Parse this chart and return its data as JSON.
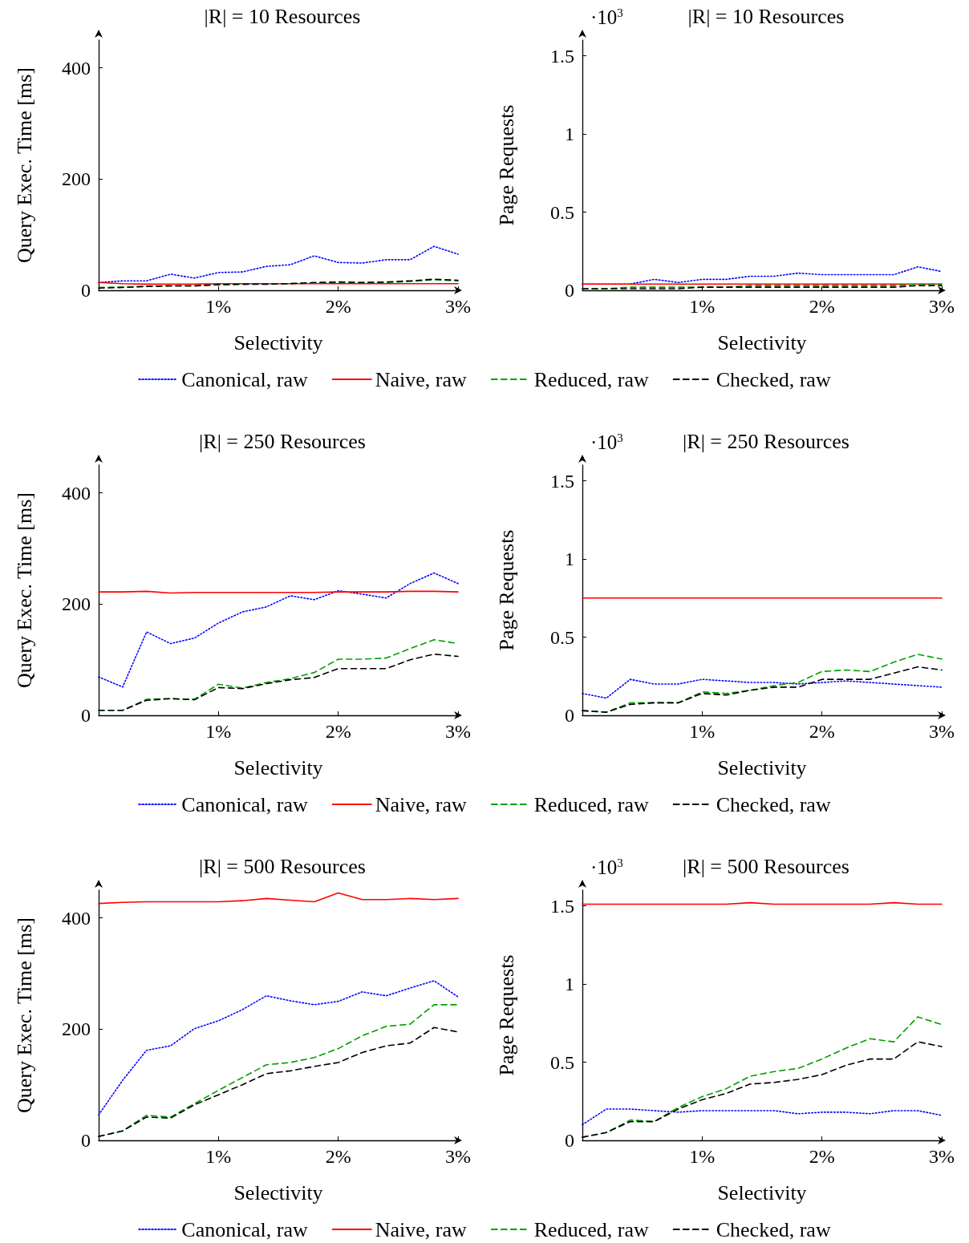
{
  "chart_data": [
    {
      "type": "line",
      "title": "|R| = 10 Resources",
      "xlabel": "Selectivity",
      "ylabel": "Query Exec. Time [ms]",
      "x": [
        0,
        0.2,
        0.4,
        0.6,
        0.8,
        1,
        1.2,
        1.4,
        1.6,
        1.8,
        2,
        2.2,
        2.4,
        2.6,
        2.8,
        3
      ],
      "xlim": [
        0,
        3
      ],
      "xticks": [
        {
          "value": 1,
          "label": "1%"
        },
        {
          "value": 2,
          "label": "2%"
        },
        {
          "value": 3,
          "label": "3%"
        }
      ],
      "ylim": [
        0,
        450
      ],
      "yticks": [
        0,
        200,
        400
      ],
      "grid": false,
      "marker": "none",
      "legend": "bottom",
      "series": [
        {
          "name": "Canonical, raw",
          "color": "#0000ff",
          "line_style": "dotted",
          "values": [
            14,
            17,
            17,
            29,
            22,
            32,
            33,
            43,
            46,
            62,
            50,
            49,
            55,
            55,
            79,
            65
          ]
        },
        {
          "name": "Naive, raw",
          "color": "#ff0000",
          "line_style": "solid",
          "values": [
            14,
            12,
            11,
            11,
            11,
            12,
            12,
            12,
            12,
            12,
            12,
            12,
            12,
            12,
            12,
            12
          ]
        },
        {
          "name": "Reduced, raw",
          "color": "#00a000",
          "line_style": "dashed",
          "values": [
            5,
            6,
            7,
            8,
            8,
            10,
            11,
            12,
            12,
            13,
            14,
            14,
            14,
            16,
            19,
            17
          ]
        },
        {
          "name": "Checked, raw",
          "color": "#000000",
          "line_style": "dashed",
          "values": [
            4,
            5,
            7,
            8,
            8,
            10,
            11,
            11,
            12,
            14,
            15,
            14,
            15,
            17,
            20,
            18
          ]
        }
      ]
    },
    {
      "type": "line",
      "title": "|R| = 10 Resources",
      "xlabel": "Selectivity",
      "ylabel": "Page Requests",
      "annotations": [
        "·10$^{3}$"
      ],
      "x": [
        0,
        0.2,
        0.4,
        0.6,
        0.8,
        1,
        1.2,
        1.4,
        1.6,
        1.8,
        2,
        2.2,
        2.4,
        2.6,
        2.8,
        3
      ],
      "xlim": [
        0,
        3
      ],
      "xticks": [
        {
          "value": 1,
          "label": "1%"
        },
        {
          "value": 2,
          "label": "2%"
        },
        {
          "value": 3,
          "label": "3%"
        }
      ],
      "ylim": [
        0,
        1.6
      ],
      "yticks": [
        0,
        0.5,
        1,
        1.5
      ],
      "grid": false,
      "marker": "none",
      "series": [
        {
          "color": "#0000ff",
          "line_style": "dotted",
          "values": [
            0.04,
            0.04,
            0.04,
            0.07,
            0.05,
            0.07,
            0.07,
            0.09,
            0.09,
            0.11,
            0.1,
            0.1,
            0.1,
            0.1,
            0.15,
            0.12
          ]
        },
        {
          "color": "#ff0000",
          "line_style": "solid",
          "values": [
            0.04,
            0.04,
            0.04,
            0.04,
            0.04,
            0.04,
            0.04,
            0.04,
            0.04,
            0.04,
            0.04,
            0.04,
            0.04,
            0.04,
            0.04,
            0.04
          ]
        },
        {
          "color": "#00a000",
          "line_style": "dashed",
          "values": [
            0.01,
            0.01,
            0.02,
            0.02,
            0.02,
            0.02,
            0.02,
            0.03,
            0.03,
            0.03,
            0.03,
            0.03,
            0.03,
            0.03,
            0.04,
            0.04
          ]
        },
        {
          "color": "#000000",
          "line_style": "dashed",
          "values": [
            0.01,
            0.01,
            0.01,
            0.01,
            0.01,
            0.02,
            0.02,
            0.02,
            0.02,
            0.02,
            0.02,
            0.02,
            0.02,
            0.02,
            0.03,
            0.03
          ]
        }
      ]
    },
    {
      "type": "line",
      "title": "|R| = 250 Resources",
      "xlabel": "Selectivity",
      "ylabel": "Query Exec. Time [ms]",
      "x": [
        0,
        0.2,
        0.4,
        0.6,
        0.8,
        1,
        1.2,
        1.4,
        1.6,
        1.8,
        2,
        2.2,
        2.4,
        2.6,
        2.8,
        3
      ],
      "xlim": [
        0,
        3
      ],
      "xticks": [
        {
          "value": 1,
          "label": "1%"
        },
        {
          "value": 2,
          "label": "2%"
        },
        {
          "value": 3,
          "label": "3%"
        }
      ],
      "ylim": [
        0,
        450
      ],
      "yticks": [
        0,
        200,
        400
      ],
      "grid": false,
      "marker": "none",
      "legend": "bottom",
      "series": [
        {
          "name": "Canonical, raw",
          "color": "#0000ff",
          "line_style": "dotted",
          "values": [
            69,
            51,
            150,
            129,
            139,
            166,
            186,
            195,
            215,
            208,
            224,
            218,
            211,
            237,
            256,
            237
          ]
        },
        {
          "name": "Naive, raw",
          "color": "#ff0000",
          "line_style": "solid",
          "values": [
            222,
            222,
            223,
            220,
            221,
            221,
            221,
            221,
            221,
            221,
            222,
            222,
            222,
            223,
            223,
            222
          ]
        },
        {
          "name": "Reduced, raw",
          "color": "#00a000",
          "line_style": "dashed",
          "values": [
            9,
            9,
            29,
            30,
            29,
            56,
            49,
            59,
            66,
            77,
            101,
            101,
            103,
            120,
            136,
            129
          ]
        },
        {
          "name": "Checked, raw",
          "color": "#000000",
          "line_style": "dashed",
          "values": [
            9,
            9,
            27,
            30,
            28,
            50,
            48,
            57,
            64,
            68,
            84,
            84,
            84,
            100,
            110,
            106
          ]
        }
      ]
    },
    {
      "type": "line",
      "title": "|R| = 250 Resources",
      "xlabel": "Selectivity",
      "ylabel": "Page Requests",
      "annotations": [
        "·10$^{3}$"
      ],
      "x": [
        0,
        0.2,
        0.4,
        0.6,
        0.8,
        1,
        1.2,
        1.4,
        1.6,
        1.8,
        2,
        2.2,
        2.4,
        2.6,
        2.8,
        3
      ],
      "xlim": [
        0,
        3
      ],
      "xticks": [
        {
          "value": 1,
          "label": "1%"
        },
        {
          "value": 2,
          "label": "2%"
        },
        {
          "value": 3,
          "label": "3%"
        }
      ],
      "ylim": [
        0,
        1.6
      ],
      "yticks": [
        0,
        0.5,
        1,
        1.5
      ],
      "grid": false,
      "marker": "none",
      "series": [
        {
          "color": "#0000ff",
          "line_style": "dotted",
          "values": [
            0.14,
            0.11,
            0.23,
            0.2,
            0.2,
            0.23,
            0.22,
            0.21,
            0.21,
            0.2,
            0.21,
            0.22,
            0.21,
            0.2,
            0.19,
            0.18
          ]
        },
        {
          "color": "#ff0000",
          "line_style": "solid",
          "values": [
            0.75,
            0.75,
            0.75,
            0.75,
            0.75,
            0.75,
            0.75,
            0.75,
            0.75,
            0.75,
            0.75,
            0.75,
            0.75,
            0.75,
            0.75,
            0.75
          ]
        },
        {
          "color": "#00a000",
          "line_style": "dashed",
          "values": [
            0.03,
            0.02,
            0.08,
            0.08,
            0.08,
            0.15,
            0.14,
            0.16,
            0.19,
            0.21,
            0.28,
            0.29,
            0.28,
            0.34,
            0.39,
            0.36
          ]
        },
        {
          "color": "#000000",
          "line_style": "dashed",
          "values": [
            0.03,
            0.02,
            0.07,
            0.08,
            0.08,
            0.14,
            0.13,
            0.16,
            0.18,
            0.18,
            0.23,
            0.23,
            0.23,
            0.27,
            0.31,
            0.29
          ]
        }
      ]
    },
    {
      "type": "line",
      "title": "|R| = 500 Resources",
      "xlabel": "Selectivity",
      "ylabel": "Query Exec. Time [ms]",
      "x": [
        0,
        0.2,
        0.4,
        0.6,
        0.8,
        1,
        1.2,
        1.4,
        1.6,
        1.8,
        2,
        2.2,
        2.4,
        2.6,
        2.8,
        3
      ],
      "xlim": [
        0,
        3
      ],
      "xticks": [
        {
          "value": 1,
          "label": "1%"
        },
        {
          "value": 2,
          "label": "2%"
        },
        {
          "value": 3,
          "label": "3%"
        }
      ],
      "ylim": [
        0,
        450
      ],
      "yticks": [
        0,
        200,
        400
      ],
      "grid": false,
      "marker": "none",
      "legend": "bottom",
      "series": [
        {
          "name": "Canonical, raw",
          "color": "#0000ff",
          "line_style": "dotted",
          "values": [
            46,
            108,
            162,
            170,
            201,
            215,
            235,
            260,
            251,
            244,
            250,
            267,
            260,
            274,
            287,
            258
          ]
        },
        {
          "name": "Naive, raw",
          "color": "#ff0000",
          "line_style": "solid",
          "values": [
            426,
            428,
            429,
            429,
            429,
            429,
            431,
            435,
            432,
            429,
            445,
            433,
            433,
            435,
            433,
            435
          ]
        },
        {
          "name": "Reduced, raw",
          "color": "#00a000",
          "line_style": "dashed",
          "values": [
            7,
            17,
            45,
            42,
            66,
            90,
            113,
            136,
            140,
            149,
            165,
            188,
            205,
            209,
            244,
            244
          ]
        },
        {
          "name": "Checked, raw",
          "color": "#000000",
          "line_style": "dashed",
          "values": [
            7,
            17,
            42,
            40,
            64,
            82,
            100,
            120,
            125,
            133,
            140,
            158,
            170,
            175,
            203,
            195
          ]
        }
      ]
    },
    {
      "type": "line",
      "title": "|R| = 500 Resources",
      "xlabel": "Selectivity",
      "ylabel": "Page Requests",
      "annotations": [
        "·10$^{3}$"
      ],
      "x": [
        0,
        0.2,
        0.4,
        0.6,
        0.8,
        1,
        1.2,
        1.4,
        1.6,
        1.8,
        2,
        2.2,
        2.4,
        2.6,
        2.8,
        3
      ],
      "xlim": [
        0,
        3
      ],
      "xticks": [
        {
          "value": 1,
          "label": "1%"
        },
        {
          "value": 2,
          "label": "2%"
        },
        {
          "value": 3,
          "label": "3%"
        }
      ],
      "ylim": [
        0,
        1.6
      ],
      "yticks": [
        0,
        0.5,
        1,
        1.5
      ],
      "grid": false,
      "marker": "none",
      "series": [
        {
          "color": "#0000ff",
          "line_style": "dotted",
          "values": [
            0.1,
            0.2,
            0.2,
            0.19,
            0.18,
            0.19,
            0.19,
            0.19,
            0.19,
            0.17,
            0.18,
            0.18,
            0.17,
            0.19,
            0.19,
            0.16
          ]
        },
        {
          "color": "#ff0000",
          "line_style": "solid",
          "values": [
            1.51,
            1.51,
            1.51,
            1.51,
            1.51,
            1.51,
            1.51,
            1.52,
            1.51,
            1.51,
            1.51,
            1.51,
            1.51,
            1.52,
            1.51,
            1.51
          ]
        },
        {
          "color": "#00a000",
          "line_style": "dashed",
          "values": [
            0.02,
            0.05,
            0.13,
            0.12,
            0.21,
            0.28,
            0.33,
            0.41,
            0.44,
            0.46,
            0.52,
            0.59,
            0.65,
            0.63,
            0.79,
            0.74
          ]
        },
        {
          "color": "#000000",
          "line_style": "dashed",
          "values": [
            0.02,
            0.05,
            0.12,
            0.12,
            0.2,
            0.26,
            0.3,
            0.36,
            0.37,
            0.39,
            0.42,
            0.48,
            0.52,
            0.52,
            0.63,
            0.6
          ]
        }
      ]
    }
  ]
}
